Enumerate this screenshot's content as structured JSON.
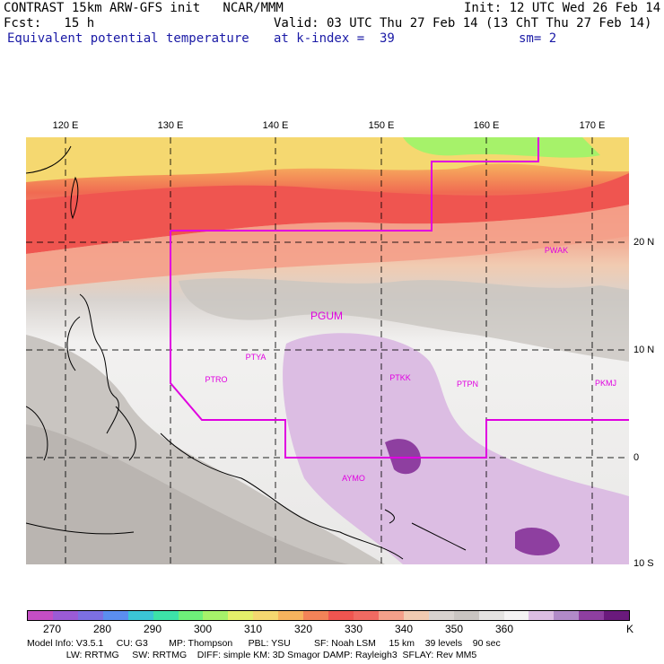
{
  "header": {
    "line1_left": "CONTRAST 15km ARW-GFS init   NCAR/MMM",
    "line1_right": "Init: 12 UTC Wed 26 Feb 14",
    "fcst": "Fcst:   15 h",
    "valid": "Valid: 03 UTC Thu 27 Feb 14 (13 ChT Thu 27 Feb 14)",
    "field": "Equivalent potential temperature",
    "level": "at k-index =  39",
    "smooth": "sm= 2"
  },
  "axes": {
    "lon_labels": [
      "120 E",
      "130 E",
      "140 E",
      "150 E",
      "160 E",
      "170 E"
    ],
    "lat_labels": [
      "20 N",
      "10 N",
      "0",
      "10 S"
    ]
  },
  "stations": [
    {
      "id": "PGUM",
      "big": true
    },
    {
      "id": "PWAK",
      "big": false
    },
    {
      "id": "PTYA",
      "big": false
    },
    {
      "id": "PTRO",
      "big": false
    },
    {
      "id": "PTKK",
      "big": false
    },
    {
      "id": "PTPN",
      "big": false
    },
    {
      "id": "PKMJ",
      "big": false
    },
    {
      "id": "AYMO",
      "big": false
    }
  ],
  "colorbar": {
    "unit": "K",
    "colors": [
      "#c44ec4",
      "#9b5bd6",
      "#7c6fe3",
      "#5b8ef0",
      "#3bc6d6",
      "#3de3a8",
      "#6ef07a",
      "#a6f26a",
      "#e4f06a",
      "#f5d870",
      "#f7b35e",
      "#f38358",
      "#ef5550",
      "#f06a62",
      "#f4a08a",
      "#f1cbb1",
      "#d8d3cf",
      "#c9c5c1",
      "#e4e3e1",
      "#f4f3f3",
      "#dcbde3",
      "#b18ac8",
      "#8e3fa0",
      "#6a1a7c"
    ],
    "ticks": [
      "270",
      "280",
      "290",
      "300",
      "310",
      "320",
      "330",
      "340",
      "350",
      "360"
    ]
  },
  "footer": {
    "line1": "Model Info: V3.5.1     CU: G3        MP: Thompson      PBL: YSU         SF: Noah LSM     15 km    39 levels    90 sec",
    "line2": "               LW: RRTMG     SW: RRTMG    DIFF: simple KM: 3D Smagor DAMP: Rayleigh3  SFLAY: Rev MM5"
  }
}
